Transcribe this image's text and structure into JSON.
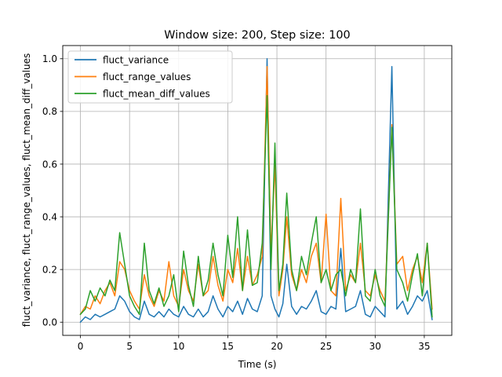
{
  "chart_data": {
    "type": "line",
    "title": "Window size: 200, Step size: 100",
    "xlabel": "Time (s)",
    "ylabel": "fluct_variance, fluct_range_values, fluct_mean_diff_values",
    "xlim": [
      -1.8,
      37.8
    ],
    "ylim": [
      -0.05,
      1.05
    ],
    "xticks": [
      0,
      5,
      10,
      15,
      20,
      25,
      30,
      35
    ],
    "yticks": [
      0.0,
      0.2,
      0.4,
      0.6,
      0.8,
      1.0
    ],
    "xtick_labels": [
      "0",
      "5",
      "10",
      "15",
      "20",
      "25",
      "30",
      "35"
    ],
    "ytick_labels": [
      "0.0",
      "0.2",
      "0.4",
      "0.6",
      "0.8",
      "1.0"
    ],
    "grid": true,
    "legend_position": "top-left",
    "series": [
      {
        "name": "fluct_variance",
        "color": "#1f77b4",
        "points": [
          [
            0,
            0.0
          ],
          [
            0.5,
            0.02
          ],
          [
            1,
            0.01
          ],
          [
            1.5,
            0.03
          ],
          [
            2,
            0.02
          ],
          [
            2.5,
            0.03
          ],
          [
            3,
            0.04
          ],
          [
            3.5,
            0.05
          ],
          [
            4,
            0.1
          ],
          [
            4.5,
            0.08
          ],
          [
            5,
            0.04
          ],
          [
            5.5,
            0.02
          ],
          [
            6,
            0.01
          ],
          [
            6.5,
            0.08
          ],
          [
            7,
            0.03
          ],
          [
            7.5,
            0.02
          ],
          [
            8,
            0.04
          ],
          [
            8.5,
            0.02
          ],
          [
            9,
            0.05
          ],
          [
            9.5,
            0.03
          ],
          [
            10,
            0.02
          ],
          [
            10.5,
            0.06
          ],
          [
            11,
            0.03
          ],
          [
            11.5,
            0.02
          ],
          [
            12,
            0.05
          ],
          [
            12.5,
            0.02
          ],
          [
            13,
            0.04
          ],
          [
            13.5,
            0.1
          ],
          [
            14,
            0.05
          ],
          [
            14.5,
            0.02
          ],
          [
            15,
            0.06
          ],
          [
            15.5,
            0.04
          ],
          [
            16,
            0.08
          ],
          [
            16.5,
            0.03
          ],
          [
            17,
            0.09
          ],
          [
            17.5,
            0.05
          ],
          [
            18,
            0.04
          ],
          [
            18.5,
            0.1
          ],
          [
            19,
            1.0
          ],
          [
            19.4,
            0.1
          ],
          [
            19.8,
            0.05
          ],
          [
            20.2,
            0.02
          ],
          [
            20.6,
            0.07
          ],
          [
            21,
            0.22
          ],
          [
            21.5,
            0.06
          ],
          [
            22,
            0.03
          ],
          [
            22.5,
            0.06
          ],
          [
            23,
            0.05
          ],
          [
            23.5,
            0.08
          ],
          [
            24,
            0.12
          ],
          [
            24.5,
            0.04
          ],
          [
            25,
            0.03
          ],
          [
            25.5,
            0.06
          ],
          [
            26,
            0.05
          ],
          [
            26.5,
            0.28
          ],
          [
            27,
            0.04
          ],
          [
            27.5,
            0.05
          ],
          [
            28,
            0.06
          ],
          [
            28.5,
            0.12
          ],
          [
            29,
            0.03
          ],
          [
            29.5,
            0.02
          ],
          [
            30,
            0.06
          ],
          [
            30.5,
            0.04
          ],
          [
            31,
            0.02
          ],
          [
            31.7,
            0.97
          ],
          [
            32.2,
            0.05
          ],
          [
            32.8,
            0.08
          ],
          [
            33.3,
            0.03
          ],
          [
            33.8,
            0.06
          ],
          [
            34.3,
            0.1
          ],
          [
            34.8,
            0.08
          ],
          [
            35.3,
            0.12
          ],
          [
            35.8,
            0.01
          ]
        ]
      },
      {
        "name": "fluct_range_values",
        "color": "#ff7f0e",
        "points": [
          [
            0,
            0.03
          ],
          [
            0.5,
            0.06
          ],
          [
            1,
            0.05
          ],
          [
            1.5,
            0.1
          ],
          [
            2,
            0.07
          ],
          [
            2.5,
            0.12
          ],
          [
            3,
            0.15
          ],
          [
            3.5,
            0.1
          ],
          [
            4,
            0.23
          ],
          [
            4.5,
            0.2
          ],
          [
            5,
            0.12
          ],
          [
            5.5,
            0.08
          ],
          [
            6,
            0.05
          ],
          [
            6.5,
            0.18
          ],
          [
            7,
            0.1
          ],
          [
            7.5,
            0.06
          ],
          [
            8,
            0.12
          ],
          [
            8.5,
            0.08
          ],
          [
            9,
            0.23
          ],
          [
            9.5,
            0.1
          ],
          [
            10,
            0.06
          ],
          [
            10.5,
            0.2
          ],
          [
            11,
            0.12
          ],
          [
            11.5,
            0.08
          ],
          [
            12,
            0.22
          ],
          [
            12.5,
            0.1
          ],
          [
            13,
            0.12
          ],
          [
            13.5,
            0.25
          ],
          [
            14,
            0.14
          ],
          [
            14.5,
            0.08
          ],
          [
            15,
            0.2
          ],
          [
            15.5,
            0.15
          ],
          [
            16,
            0.28
          ],
          [
            16.5,
            0.12
          ],
          [
            17,
            0.25
          ],
          [
            17.5,
            0.14
          ],
          [
            18,
            0.18
          ],
          [
            18.5,
            0.25
          ],
          [
            19,
            0.97
          ],
          [
            19.4,
            0.26
          ],
          [
            19.8,
            0.6
          ],
          [
            20.2,
            0.1
          ],
          [
            20.6,
            0.2
          ],
          [
            21,
            0.4
          ],
          [
            21.5,
            0.18
          ],
          [
            22,
            0.12
          ],
          [
            22.5,
            0.2
          ],
          [
            23,
            0.15
          ],
          [
            23.5,
            0.25
          ],
          [
            24,
            0.3
          ],
          [
            24.5,
            0.15
          ],
          [
            25,
            0.41
          ],
          [
            25.5,
            0.12
          ],
          [
            26,
            0.1
          ],
          [
            26.5,
            0.47
          ],
          [
            27,
            0.12
          ],
          [
            27.5,
            0.18
          ],
          [
            28,
            0.15
          ],
          [
            28.5,
            0.3
          ],
          [
            29,
            0.12
          ],
          [
            29.5,
            0.1
          ],
          [
            30,
            0.18
          ],
          [
            30.5,
            0.12
          ],
          [
            31,
            0.08
          ],
          [
            31.7,
            0.75
          ],
          [
            32.2,
            0.22
          ],
          [
            32.8,
            0.25
          ],
          [
            33.3,
            0.12
          ],
          [
            33.8,
            0.2
          ],
          [
            34.3,
            0.25
          ],
          [
            34.8,
            0.15
          ],
          [
            35.3,
            0.3
          ],
          [
            35.8,
            0.05
          ]
        ]
      },
      {
        "name": "fluct_mean_diff_values",
        "color": "#2ca02c",
        "points": [
          [
            0,
            0.03
          ],
          [
            0.5,
            0.05
          ],
          [
            1,
            0.12
          ],
          [
            1.5,
            0.08
          ],
          [
            2,
            0.13
          ],
          [
            2.5,
            0.1
          ],
          [
            3,
            0.16
          ],
          [
            3.5,
            0.12
          ],
          [
            4,
            0.34
          ],
          [
            4.5,
            0.22
          ],
          [
            5,
            0.1
          ],
          [
            5.5,
            0.06
          ],
          [
            6,
            0.03
          ],
          [
            6.5,
            0.3
          ],
          [
            7,
            0.12
          ],
          [
            7.5,
            0.07
          ],
          [
            8,
            0.13
          ],
          [
            8.5,
            0.06
          ],
          [
            9,
            0.1
          ],
          [
            9.5,
            0.18
          ],
          [
            10,
            0.04
          ],
          [
            10.5,
            0.27
          ],
          [
            11,
            0.14
          ],
          [
            11.5,
            0.06
          ],
          [
            12,
            0.25
          ],
          [
            12.5,
            0.1
          ],
          [
            13,
            0.16
          ],
          [
            13.5,
            0.3
          ],
          [
            14,
            0.18
          ],
          [
            14.5,
            0.1
          ],
          [
            15,
            0.33
          ],
          [
            15.5,
            0.17
          ],
          [
            16,
            0.4
          ],
          [
            16.5,
            0.12
          ],
          [
            17,
            0.35
          ],
          [
            17.5,
            0.14
          ],
          [
            18,
            0.15
          ],
          [
            18.5,
            0.3
          ],
          [
            19,
            0.86
          ],
          [
            19.4,
            0.2
          ],
          [
            19.8,
            0.68
          ],
          [
            20.2,
            0.12
          ],
          [
            20.6,
            0.22
          ],
          [
            21,
            0.49
          ],
          [
            21.5,
            0.2
          ],
          [
            22,
            0.12
          ],
          [
            22.5,
            0.25
          ],
          [
            23,
            0.18
          ],
          [
            23.5,
            0.3
          ],
          [
            24,
            0.4
          ],
          [
            24.5,
            0.15
          ],
          [
            25,
            0.2
          ],
          [
            25.5,
            0.12
          ],
          [
            26,
            0.18
          ],
          [
            26.5,
            0.2
          ],
          [
            27,
            0.1
          ],
          [
            27.5,
            0.2
          ],
          [
            28,
            0.15
          ],
          [
            28.5,
            0.43
          ],
          [
            29,
            0.1
          ],
          [
            29.5,
            0.08
          ],
          [
            30,
            0.2
          ],
          [
            30.5,
            0.1
          ],
          [
            31,
            0.06
          ],
          [
            31.7,
            0.74
          ],
          [
            32.2,
            0.2
          ],
          [
            32.8,
            0.15
          ],
          [
            33.3,
            0.08
          ],
          [
            33.8,
            0.18
          ],
          [
            34.3,
            0.26
          ],
          [
            34.8,
            0.1
          ],
          [
            35.3,
            0.3
          ],
          [
            35.8,
            0.02
          ]
        ]
      }
    ]
  }
}
